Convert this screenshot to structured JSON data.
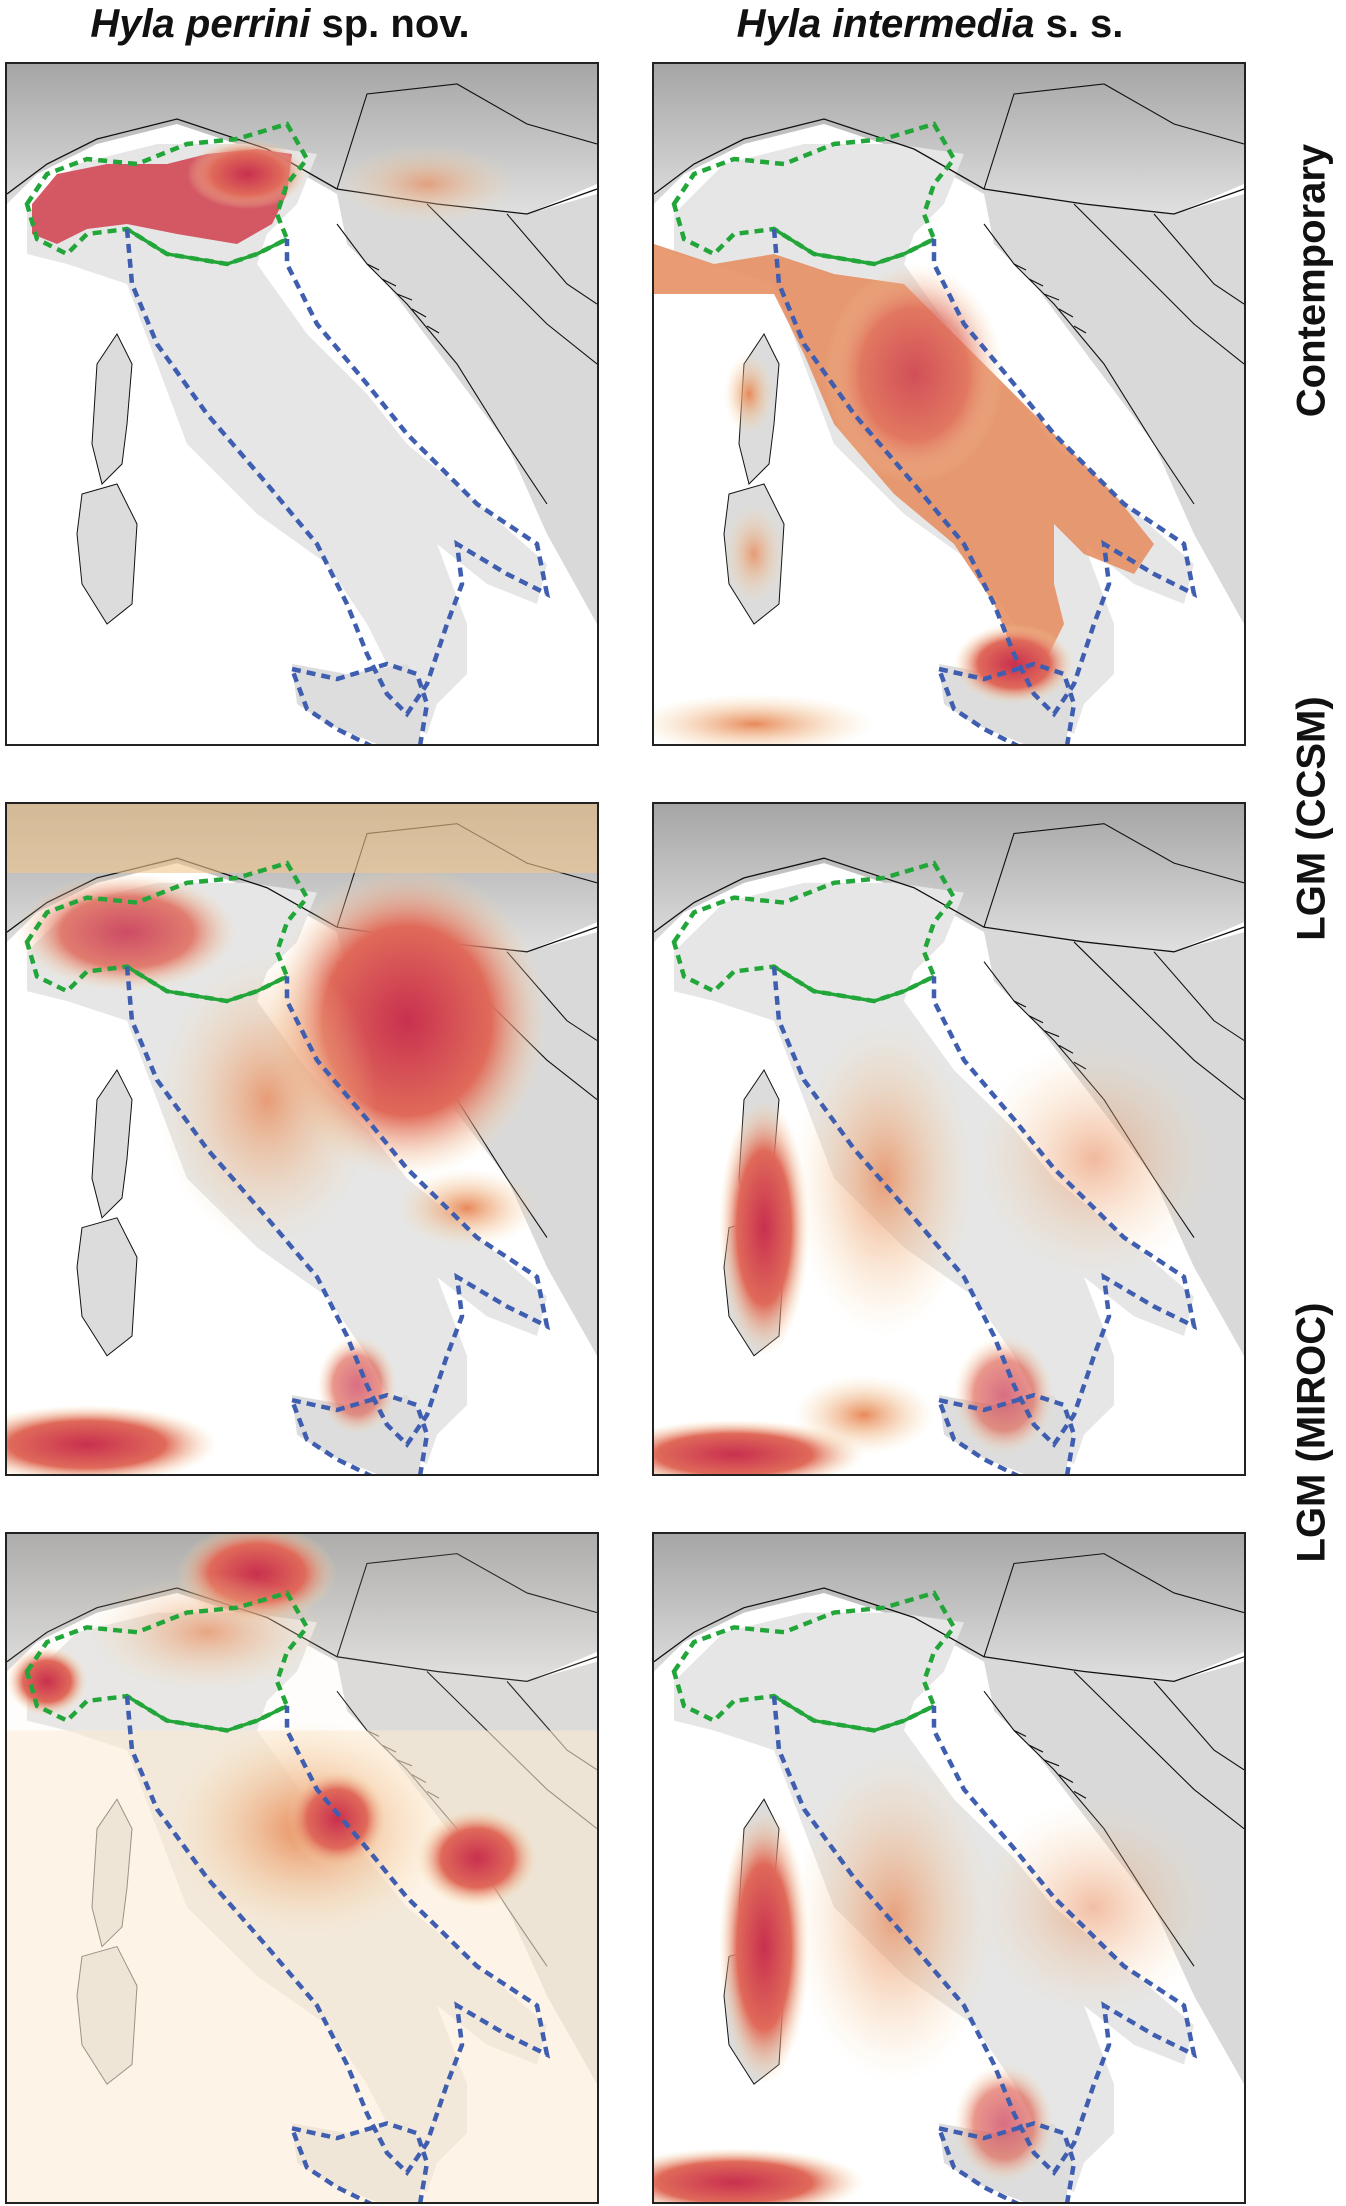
{
  "columns": [
    {
      "species": "Hyla perrini",
      "suffix": " sp. nov."
    },
    {
      "species": "Hyla intermedia",
      "suffix": " s. s."
    }
  ],
  "rows": [
    "Contemporary",
    "LGM (CCSM)",
    "LGM (MIROC)"
  ],
  "colors": {
    "green_boundary": "#22a63a",
    "blue_boundary": "#3f5eb0",
    "high_suitability": "#c8304e",
    "mid_suitability": "#e8895a",
    "low_suitability": "#f7dcaa",
    "relief": "#9a9a9a"
  }
}
